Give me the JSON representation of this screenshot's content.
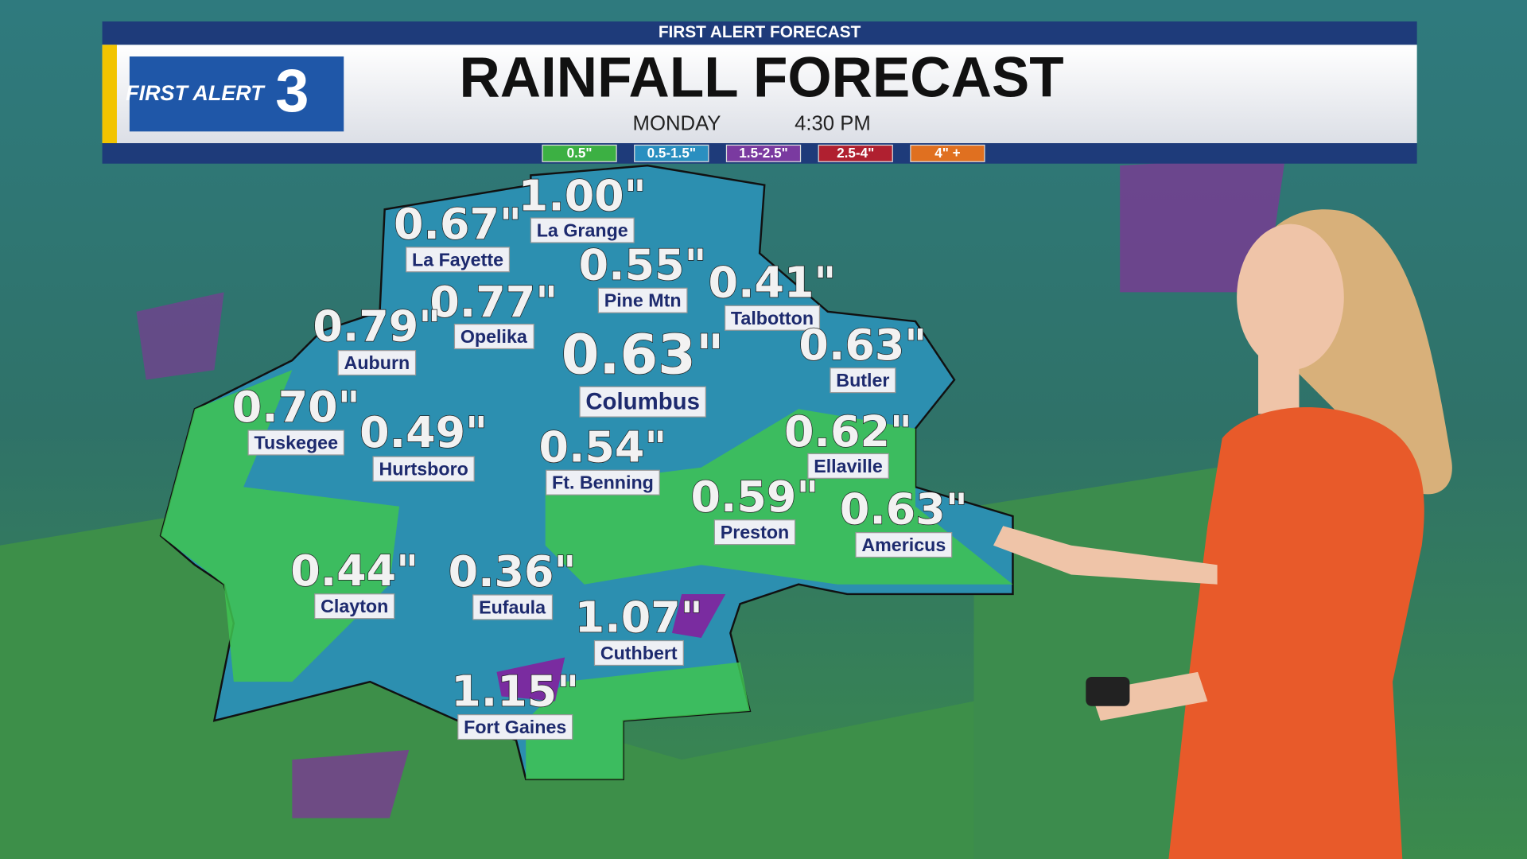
{
  "header": {
    "top_bar": "FIRST ALERT FORECAST",
    "logo_text": "FIRST ALERT",
    "logo_number": "3",
    "title": "RAINFALL FORECAST",
    "day": "MONDAY",
    "time": "4:30 PM"
  },
  "legend": [
    "0.5\"",
    "0.5-1.5\"",
    "1.5-2.5\"",
    "2.5-4\"",
    "4\" +"
  ],
  "cities": [
    {
      "name": "La Fayette",
      "amount": "0.67\""
    },
    {
      "name": "La Grange",
      "amount": "1.00\""
    },
    {
      "name": "Pine Mtn",
      "amount": "0.55\""
    },
    {
      "name": "Talbotton",
      "amount": "0.41\""
    },
    {
      "name": "Opelika",
      "amount": "0.77\""
    },
    {
      "name": "Auburn",
      "amount": "0.79\""
    },
    {
      "name": "Columbus",
      "amount": "0.63\""
    },
    {
      "name": "Butler",
      "amount": "0.63\""
    },
    {
      "name": "Tuskegee",
      "amount": "0.70\""
    },
    {
      "name": "Hurtsboro",
      "amount": "0.49\""
    },
    {
      "name": "Ft. Benning",
      "amount": "0.54\""
    },
    {
      "name": "Ellaville",
      "amount": "0.62\""
    },
    {
      "name": "Preston",
      "amount": "0.59\""
    },
    {
      "name": "Americus",
      "amount": "0.63\""
    },
    {
      "name": "Clayton",
      "amount": "0.44\""
    },
    {
      "name": "Eufaula",
      "amount": "0.36\""
    },
    {
      "name": "Cuthbert",
      "amount": "1.07\""
    },
    {
      "name": "Fort Gaines",
      "amount": "1.15\""
    }
  ]
}
